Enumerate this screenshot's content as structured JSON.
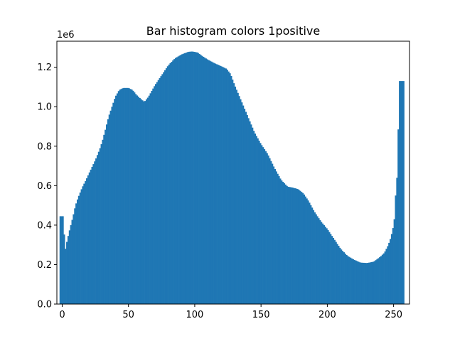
{
  "chart_data": {
    "type": "bar",
    "title": "Bar histogram colors 1positive",
    "xlabel": "",
    "ylabel": "",
    "y_multiplier_label": "1e6",
    "xlim": [
      -4,
      262
    ],
    "ylim": [
      0,
      1332000
    ],
    "x_ticks": [
      0,
      50,
      100,
      150,
      200,
      250
    ],
    "x_tick_labels": [
      "0",
      "50",
      "100",
      "150",
      "200",
      "250"
    ],
    "y_ticks": [
      0,
      200000,
      400000,
      600000,
      800000,
      1000000,
      1200000
    ],
    "y_tick_labels": [
      "0.0",
      "0.2",
      "0.4",
      "0.6",
      "0.8",
      "1.0",
      "1.2"
    ],
    "bar_color": "#1f77b4",
    "grid": false,
    "legend": "none",
    "bar_anchors": [
      [
        -2,
        445000
      ],
      [
        -1,
        445000
      ],
      [
        0,
        445000
      ],
      [
        1,
        445000
      ],
      [
        2,
        260000
      ],
      [
        3,
        300000
      ],
      [
        5,
        360000
      ],
      [
        8,
        440000
      ],
      [
        10,
        500000
      ],
      [
        12,
        540000
      ],
      [
        15,
        590000
      ],
      [
        18,
        630000
      ],
      [
        20,
        660000
      ],
      [
        25,
        730000
      ],
      [
        28,
        780000
      ],
      [
        30,
        820000
      ],
      [
        32,
        870000
      ],
      [
        35,
        950000
      ],
      [
        38,
        1010000
      ],
      [
        40,
        1050000
      ],
      [
        43,
        1085000
      ],
      [
        46,
        1095000
      ],
      [
        50,
        1095000
      ],
      [
        53,
        1085000
      ],
      [
        56,
        1060000
      ],
      [
        60,
        1035000
      ],
      [
        62,
        1025000
      ],
      [
        65,
        1050000
      ],
      [
        70,
        1110000
      ],
      [
        75,
        1160000
      ],
      [
        80,
        1210000
      ],
      [
        85,
        1245000
      ],
      [
        90,
        1265000
      ],
      [
        95,
        1278000
      ],
      [
        98,
        1280000
      ],
      [
        102,
        1275000
      ],
      [
        106,
        1255000
      ],
      [
        110,
        1238000
      ],
      [
        115,
        1220000
      ],
      [
        120,
        1205000
      ],
      [
        124,
        1192000
      ],
      [
        127,
        1165000
      ],
      [
        130,
        1110000
      ],
      [
        135,
        1030000
      ],
      [
        140,
        950000
      ],
      [
        145,
        870000
      ],
      [
        150,
        810000
      ],
      [
        155,
        760000
      ],
      [
        160,
        690000
      ],
      [
        165,
        630000
      ],
      [
        170,
        595000
      ],
      [
        174,
        590000
      ],
      [
        178,
        582000
      ],
      [
        182,
        560000
      ],
      [
        186,
        520000
      ],
      [
        190,
        470000
      ],
      [
        195,
        420000
      ],
      [
        200,
        380000
      ],
      [
        205,
        330000
      ],
      [
        210,
        280000
      ],
      [
        215,
        245000
      ],
      [
        220,
        225000
      ],
      [
        225,
        210000
      ],
      [
        230,
        208000
      ],
      [
        235,
        215000
      ],
      [
        240,
        240000
      ],
      [
        243,
        260000
      ],
      [
        246,
        300000
      ],
      [
        248,
        340000
      ],
      [
        250,
        400000
      ],
      [
        251,
        460000
      ],
      [
        252,
        640000
      ],
      [
        253,
        640000
      ],
      [
        254,
        1130000
      ],
      [
        258,
        1130000
      ]
    ]
  }
}
